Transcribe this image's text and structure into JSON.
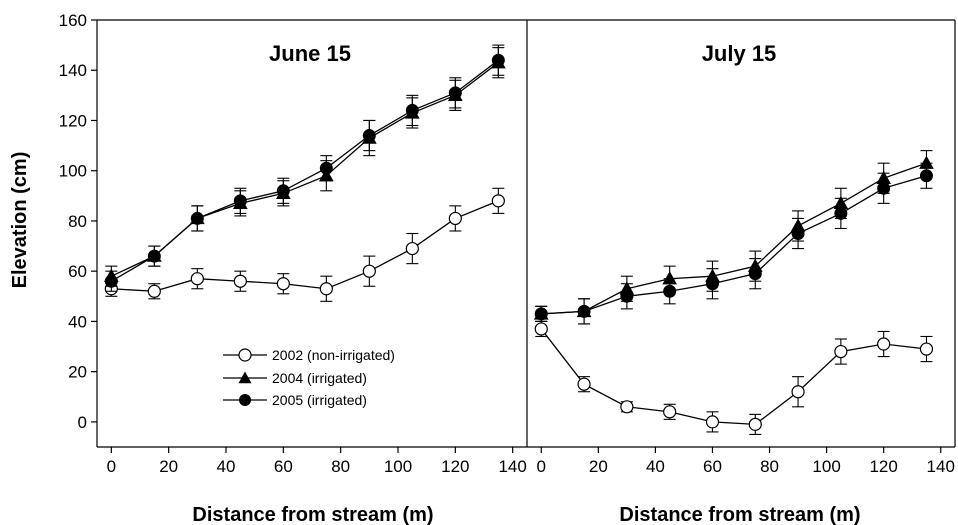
{
  "chart_data": {
    "type": "line",
    "ylabel": "Elevation (cm)",
    "xlabel": "Distance from stream (m)",
    "ylim": [
      -10,
      160
    ],
    "yticks": [
      0,
      20,
      40,
      60,
      80,
      100,
      120,
      140,
      160
    ],
    "xlim": [
      -5,
      145
    ],
    "xticks": [
      0,
      20,
      40,
      60,
      80,
      100,
      120,
      140
    ],
    "grid": false,
    "legend_position": "lower-left of left panel",
    "legend": [
      {
        "label": "2002 (non-irrigated)",
        "marker": "open-circle"
      },
      {
        "label": "2004 (irrigated)",
        "marker": "filled-triangle"
      },
      {
        "label": "2005 (irrigated)",
        "marker": "filled-circle"
      }
    ],
    "panels": [
      {
        "title": "June 15",
        "x": [
          0,
          15,
          30,
          45,
          60,
          75,
          90,
          105,
          120,
          135
        ],
        "series": [
          {
            "name": "2002 (non-irrigated)",
            "marker": "open-circle",
            "values": [
              53,
              52,
              57,
              56,
              55,
              53,
              60,
              69,
              81,
              88
            ],
            "errors": [
              3,
              3,
              4,
              4,
              4,
              5,
              6,
              6,
              5,
              5
            ]
          },
          {
            "name": "2004 (irrigated)",
            "marker": "filled-triangle",
            "values": [
              58,
              66,
              81,
              87,
              91,
              98,
              113,
              123,
              130,
              143
            ],
            "errors": [
              4,
              4,
              5,
              5,
              5,
              6,
              7,
              6,
              6,
              6
            ]
          },
          {
            "name": "2005 (irrigated)",
            "marker": "filled-circle",
            "values": [
              56,
              66,
              81,
              88,
              92,
              101,
              114,
              124,
              131,
              144
            ],
            "errors": [
              4,
              4,
              5,
              5,
              5,
              5,
              6,
              6,
              6,
              6
            ]
          }
        ]
      },
      {
        "title": "July 15",
        "x": [
          0,
          15,
          30,
          45,
          60,
          75,
          90,
          105,
          120,
          135
        ],
        "series": [
          {
            "name": "2002 (non-irrigated)",
            "marker": "open-circle",
            "values": [
              37,
              15,
              6,
              4,
              0,
              -1,
              12,
              28,
              31,
              29
            ],
            "errors": [
              3,
              3,
              2,
              3,
              4,
              4,
              6,
              5,
              5,
              5
            ]
          },
          {
            "name": "2004 (irrigated)",
            "marker": "filled-triangle",
            "values": [
              43,
              44,
              53,
              57,
              58,
              62,
              78,
              87,
              97,
              103
            ],
            "errors": [
              3,
              5,
              5,
              5,
              6,
              6,
              6,
              6,
              6,
              5
            ]
          },
          {
            "name": "2005 (irrigated)",
            "marker": "filled-circle",
            "values": [
              43,
              44,
              50,
              52,
              55,
              59,
              75,
              83,
              93,
              98
            ],
            "errors": [
              3,
              5,
              5,
              5,
              6,
              6,
              6,
              6,
              6,
              5
            ]
          }
        ]
      }
    ]
  }
}
